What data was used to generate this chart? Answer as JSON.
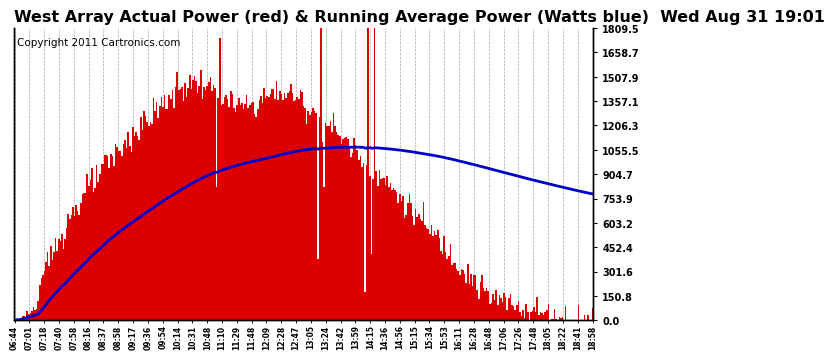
{
  "title": "West Array Actual Power (red) & Running Average Power (Watts blue)  Wed Aug 31 19:01",
  "copyright": "Copyright 2011 Cartronics.com",
  "background_color": "#ffffff",
  "plot_bg_color": "#ffffff",
  "y_ticks": [
    0.0,
    150.8,
    301.6,
    452.4,
    603.2,
    753.9,
    904.7,
    1055.5,
    1206.3,
    1357.1,
    1507.9,
    1658.7,
    1809.5
  ],
  "x_tick_labels": [
    "06:44",
    "07:01",
    "07:18",
    "07:40",
    "07:58",
    "08:16",
    "08:37",
    "08:58",
    "09:17",
    "09:36",
    "09:54",
    "10:14",
    "10:31",
    "10:48",
    "11:10",
    "11:29",
    "11:48",
    "12:09",
    "12:28",
    "12:47",
    "13:05",
    "13:24",
    "13:42",
    "13:59",
    "14:15",
    "14:36",
    "14:56",
    "15:15",
    "15:34",
    "15:53",
    "16:11",
    "16:28",
    "16:48",
    "17:06",
    "17:26",
    "17:48",
    "18:05",
    "18:22",
    "18:41",
    "18:58"
  ],
  "ymax": 1809.5,
  "ymin": 0.0,
  "bar_color": "#dd0000",
  "avg_color": "#0000cc",
  "grid_color": "#aaaaaa",
  "title_color": "#000000",
  "title_fontsize": 11.5,
  "copyright_fontsize": 7.5
}
